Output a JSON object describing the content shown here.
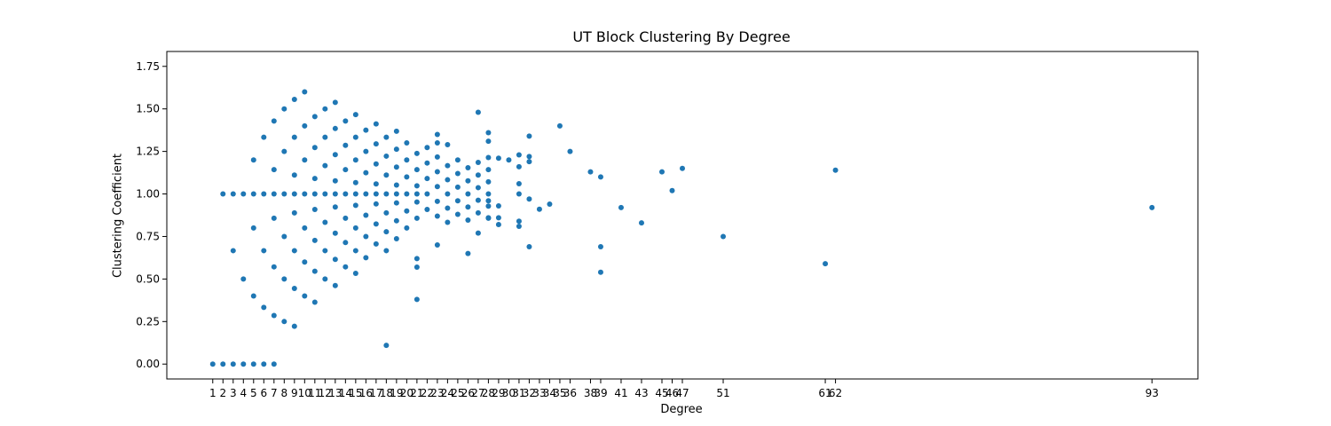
{
  "chart_data": {
    "type": "scatter",
    "title": "UT Block Clustering By Degree",
    "xlabel": "Degree",
    "ylabel": "Clustering Coefficient",
    "xlim": [
      -3.5,
      97.5
    ],
    "ylim": [
      -0.0875,
      1.8375
    ],
    "grid": false,
    "marker_color": "#1f77b4",
    "x_ticks": [
      1,
      2,
      3,
      4,
      5,
      6,
      7,
      8,
      9,
      10,
      11,
      12,
      13,
      14,
      15,
      16,
      17,
      18,
      19,
      20,
      21,
      22,
      23,
      24,
      25,
      26,
      27,
      28,
      29,
      30,
      31,
      32,
      33,
      34,
      35,
      36,
      38,
      39,
      41,
      43,
      45,
      46,
      47,
      51,
      61,
      62,
      93
    ],
    "y_ticks": [
      "0.00",
      "0.25",
      "0.50",
      "0.75",
      "1.00",
      "1.25",
      "1.50",
      "1.75"
    ],
    "y_tick_values": [
      0,
      0.25,
      0.5,
      0.75,
      1.0,
      1.25,
      1.5,
      1.75
    ],
    "explicit_points": [
      [
        18,
        0.11
      ],
      [
        21,
        0.38
      ],
      [
        21,
        0.57
      ],
      [
        21,
        0.62
      ],
      [
        23,
        0.7
      ],
      [
        23,
        1.3
      ],
      [
        23,
        1.35
      ],
      [
        24,
        1.29
      ],
      [
        25,
        1.2
      ],
      [
        26,
        0.65
      ],
      [
        27,
        0.77
      ],
      [
        27,
        1.48
      ],
      [
        28,
        0.86
      ],
      [
        28,
        0.96
      ],
      [
        28,
        1.31
      ],
      [
        28,
        1.36
      ],
      [
        29,
        0.82
      ],
      [
        29,
        0.86
      ],
      [
        29,
        0.93
      ],
      [
        29,
        1.21
      ],
      [
        30,
        1.2
      ],
      [
        31,
        0.81
      ],
      [
        31,
        0.84
      ],
      [
        31,
        1.0
      ],
      [
        31,
        1.06
      ],
      [
        31,
        1.16
      ],
      [
        31,
        1.23
      ],
      [
        32,
        0.69
      ],
      [
        32,
        0.97
      ],
      [
        32,
        1.19
      ],
      [
        32,
        1.22
      ],
      [
        32,
        1.34
      ],
      [
        33,
        0.91
      ],
      [
        34,
        0.94
      ],
      [
        35,
        1.4
      ],
      [
        36,
        1.25
      ],
      [
        38,
        1.13
      ],
      [
        39,
        0.54
      ],
      [
        39,
        0.69
      ],
      [
        39,
        1.1
      ],
      [
        41,
        0.92
      ],
      [
        43,
        0.83
      ],
      [
        45,
        1.13
      ],
      [
        46,
        1.02
      ],
      [
        47,
        1.15
      ],
      [
        51,
        0.75
      ],
      [
        61,
        0.59
      ],
      [
        62,
        1.14
      ],
      [
        93,
        0.92
      ]
    ],
    "generated_pattern": "For each degree k from 2 to 22, points at y = j / (k/2) for integer j with lower/upper bounds per degree; degree 1-7 also include y = 0"
  }
}
